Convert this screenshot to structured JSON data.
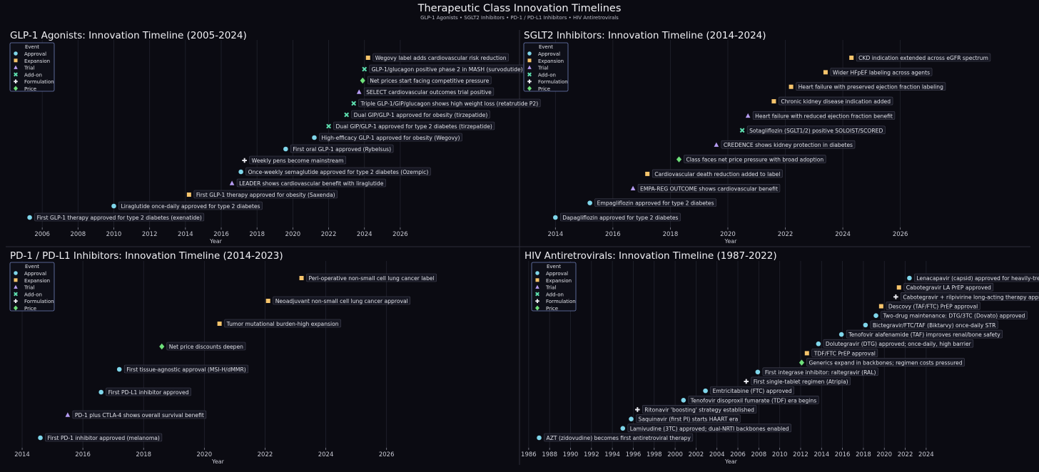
{
  "page": {
    "title": "Therapeutic Class Innovation Timelines",
    "subtitle": "GLP-1 Agonists  •  SGLT2 Inhibitors  •  PD-1 / PD-L1 Inhibitors  •  HIV Antiretrovirals"
  },
  "legend": {
    "title": "Event",
    "entries": [
      {
        "type": "Approval",
        "label": "Approval",
        "marker": "circle",
        "color": "#7fd6ea"
      },
      {
        "type": "Expansion",
        "label": "Expansion",
        "marker": "square",
        "color": "#f6c46b"
      },
      {
        "type": "Trial",
        "label": "Trial",
        "marker": "triangle",
        "color": "#b69cf2"
      },
      {
        "type": "Add-on",
        "label": "Add-on",
        "marker": "x",
        "color": "#5ee0b0"
      },
      {
        "type": "Formulation",
        "label": "Formulation",
        "marker": "plus",
        "color": "#e8e8ee"
      },
      {
        "type": "Price",
        "label": "Price",
        "marker": "diamond",
        "color": "#6ee07a"
      }
    ]
  },
  "chart_data": [
    {
      "type": "scatter",
      "title": "GLP-1 Agonists: Innovation Timeline (2005-2024)",
      "xlabel": "Year",
      "xlim": [
        2004.2,
        2027.2
      ],
      "xticks": [
        2006,
        2008,
        2010,
        2012,
        2014,
        2016,
        2018,
        2020,
        2022,
        2024,
        2026
      ],
      "grid": true,
      "legend_position": "top-left",
      "events": [
        {
          "year": 2005.3,
          "type": "Approval",
          "label": "First GLP-1 therapy approved for type 2 diabetes (exenatide)"
        },
        {
          "year": 2010.0,
          "type": "Approval",
          "label": "Liraglutide once-daily approved for type 2 diabetes"
        },
        {
          "year": 2014.2,
          "type": "Expansion",
          "label": "First GLP-1 therapy approved for obesity (Saxenda)"
        },
        {
          "year": 2016.6,
          "type": "Trial",
          "label": "LEADER shows cardiovascular benefit with liraglutide"
        },
        {
          "year": 2017.1,
          "type": "Approval",
          "label": "Once-weekly semaglutide approved for type 2 diabetes (Ozempic)"
        },
        {
          "year": 2017.3,
          "type": "Formulation",
          "label": "Weekly pens become mainstream"
        },
        {
          "year": 2019.6,
          "type": "Approval",
          "label": "First oral GLP-1 approved (Rybelsus)"
        },
        {
          "year": 2021.2,
          "type": "Approval",
          "label": "High-efficacy GLP-1 approved for obesity (Wegovy)"
        },
        {
          "year": 2022.0,
          "type": "Add-on",
          "label": "Dual GIP/GLP-1 approved for type 2 diabetes (tirzepatide)"
        },
        {
          "year": 2023.0,
          "type": "Add-on",
          "label": "Dual GIP/GLP-1 approved for obesity (tirzepatide)"
        },
        {
          "year": 2023.4,
          "type": "Add-on",
          "label": "Triple GLP-1/GIP/glucagon shows high weight loss (retatrutide P2)"
        },
        {
          "year": 2023.7,
          "type": "Trial",
          "label": "SELECT cardiovascular outcomes trial positive"
        },
        {
          "year": 2023.9,
          "type": "Price",
          "label": "Net prices start facing competitive pressure"
        },
        {
          "year": 2024.0,
          "type": "Add-on",
          "label": "GLP-1/glucagon positive phase 2 in MASH (survodutide)"
        },
        {
          "year": 2024.2,
          "type": "Expansion",
          "label": "Wegovy label adds cardiovascular risk reduction"
        }
      ]
    },
    {
      "type": "scatter",
      "title": "SGLT2 Inhibitors: Innovation Timeline (2014-2024)",
      "xlabel": "Year",
      "xlim": [
        2012.9,
        2027.3
      ],
      "xticks": [
        2014,
        2016,
        2018,
        2020,
        2022,
        2024,
        2026
      ],
      "grid": true,
      "legend_position": "top-left",
      "events": [
        {
          "year": 2014.0,
          "type": "Approval",
          "label": "Dapagliflozin approved for type 2 diabetes"
        },
        {
          "year": 2015.2,
          "type": "Approval",
          "label": "Empagliflozin approved for type 2 diabetes"
        },
        {
          "year": 2016.7,
          "type": "Trial",
          "label": "EMPA-REG OUTCOME shows cardiovascular benefit"
        },
        {
          "year": 2017.2,
          "type": "Expansion",
          "label": "Cardiovascular death reduction added to label"
        },
        {
          "year": 2018.3,
          "type": "Price",
          "label": "Class faces net price pressure with broad adoption"
        },
        {
          "year": 2019.6,
          "type": "Trial",
          "label": "CREDENCE shows kidney protection in diabetes"
        },
        {
          "year": 2020.5,
          "type": "Add-on",
          "label": "Sotagliflozin (SGLT1/2) positive SOLOIST/SCORED"
        },
        {
          "year": 2020.7,
          "type": "Trial",
          "label": "Heart failure with reduced ejection fraction benefit"
        },
        {
          "year": 2021.6,
          "type": "Expansion",
          "label": "Chronic kidney disease indication added"
        },
        {
          "year": 2022.2,
          "type": "Expansion",
          "label": "Heart failure with preserved ejection fraction labeling"
        },
        {
          "year": 2023.4,
          "type": "Expansion",
          "label": "Wider HFpEF labeling across agents"
        },
        {
          "year": 2024.3,
          "type": "Expansion",
          "label": "CKD indication extended across eGFR spectrum"
        }
      ]
    },
    {
      "type": "scatter",
      "title": "PD-1 / PD-L1 Inhibitors: Innovation Timeline (2014-2023)",
      "xlabel": "Year",
      "xlim": [
        2013.6,
        2027.3
      ],
      "xticks": [
        2014,
        2016,
        2018,
        2020,
        2022,
        2024,
        2026
      ],
      "grid": true,
      "legend_position": "top-left",
      "events": [
        {
          "year": 2014.6,
          "type": "Approval",
          "label": "First PD-1 inhibitor approved (melanoma)"
        },
        {
          "year": 2015.5,
          "type": "Trial",
          "label": "PD-1 plus CTLA-4 shows overall survival benefit"
        },
        {
          "year": 2016.6,
          "type": "Approval",
          "label": "First PD-L1 inhibitor approved"
        },
        {
          "year": 2017.2,
          "type": "Approval",
          "label": "First tissue-agnostic approval (MSI-H/dMMR)"
        },
        {
          "year": 2018.6,
          "type": "Price",
          "label": "Net price discounts deepen"
        },
        {
          "year": 2020.5,
          "type": "Expansion",
          "label": "Tumor mutational burden-high expansion"
        },
        {
          "year": 2022.1,
          "type": "Expansion",
          "label": "Neoadjuvant non-small cell lung cancer approval"
        },
        {
          "year": 2023.2,
          "type": "Expansion",
          "label": "Peri-operative non-small cell lung cancer label"
        }
      ]
    },
    {
      "type": "scatter",
      "title": "HIV Antiretrovirals: Innovation Timeline (1987-2022)",
      "xlabel": "Year",
      "xlim": [
        1985.6,
        2025.1
      ],
      "xticks": [
        1986,
        1988,
        1990,
        1992,
        1994,
        1996,
        1998,
        2000,
        2002,
        2004,
        2006,
        2008,
        2010,
        2012,
        2014,
        2016,
        2018,
        2020,
        2022,
        2024
      ],
      "grid": true,
      "legend_position": "top-left",
      "events": [
        {
          "year": 1987.0,
          "type": "Approval",
          "label": "AZT (zidovudine) becomes first antiretroviral therapy"
        },
        {
          "year": 1995.0,
          "type": "Approval",
          "label": "Lamivudine (3TC) approved; dual-NRTI backbones enabled"
        },
        {
          "year": 1995.8,
          "type": "Approval",
          "label": "Saquinavir (first PI) starts HAART era"
        },
        {
          "year": 1996.4,
          "type": "Formulation",
          "label": "Ritonavir 'boosting' strategy established"
        },
        {
          "year": 2000.8,
          "type": "Approval",
          "label": "Tenofovir disoproxil fumarate (TDF) era begins"
        },
        {
          "year": 2002.9,
          "type": "Approval",
          "label": "Emtricitabine (FTC) approved"
        },
        {
          "year": 2006.8,
          "type": "Formulation",
          "label": "First single-tablet regimen (Atripla)"
        },
        {
          "year": 2007.9,
          "type": "Approval",
          "label": "First integrase inhibitor: raltegravir (RAL)"
        },
        {
          "year": 2012.1,
          "type": "Price",
          "label": "Generics expand in backbones; regimen costs pressured"
        },
        {
          "year": 2012.6,
          "type": "Expansion",
          "label": "TDF/FTC PrEP approval"
        },
        {
          "year": 2013.7,
          "type": "Approval",
          "label": "Dolutegravir (DTG) approved; once-daily, high barrier"
        },
        {
          "year": 2015.9,
          "type": "Approval",
          "label": "Tenofovir alafenamide (TAF) improves renal/bone safety"
        },
        {
          "year": 2018.2,
          "type": "Approval",
          "label": "Bictegravir/FTC/TAF (Biktarvy) once-daily STR"
        },
        {
          "year": 2019.2,
          "type": "Approval",
          "label": "Two-drug maintenance: DTG/3TC (Dovato) approved"
        },
        {
          "year": 2019.7,
          "type": "Expansion",
          "label": "Descovy (TAF/FTC) PrEP approval"
        },
        {
          "year": 2021.1,
          "type": "Formulation",
          "label": "Cabotegravir + rilpivirine long-acting therapy approved"
        },
        {
          "year": 2021.4,
          "type": "Expansion",
          "label": "Cabotegravir LA PrEP approved"
        },
        {
          "year": 2022.4,
          "type": "Approval",
          "label": "Lenacapavir (capsid) approved for heavily-treatment-experienced"
        }
      ]
    }
  ]
}
